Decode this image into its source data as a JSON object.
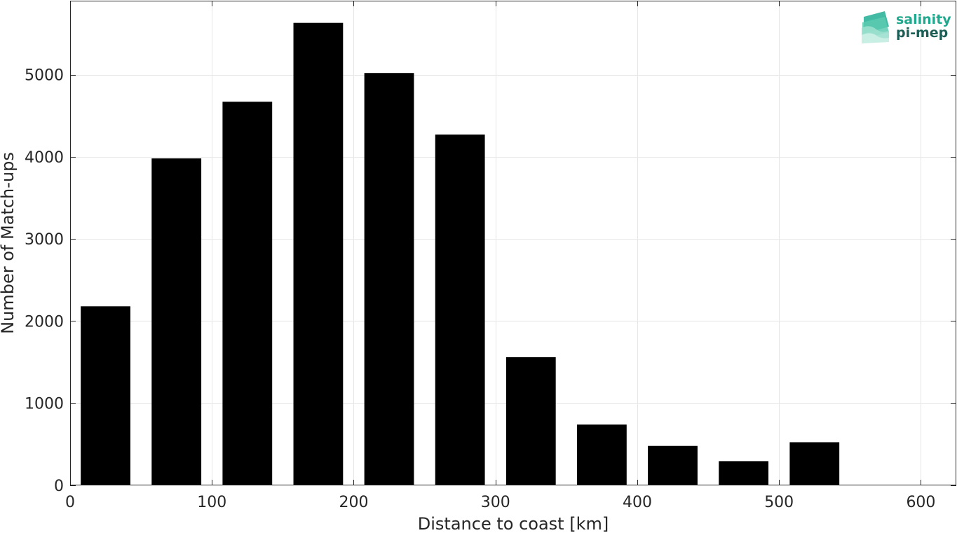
{
  "chart_data": {
    "type": "bar",
    "bin_width_km": 50,
    "x": [
      25,
      75,
      125,
      175,
      225,
      275,
      325,
      375,
      425,
      475,
      525
    ],
    "values": [
      2180,
      3980,
      4670,
      5630,
      5020,
      4270,
      1560,
      740,
      480,
      295,
      525
    ],
    "xlabel": "Distance to coast [km]",
    "ylabel": "Number of Match-ups",
    "xlim": [
      0,
      625
    ],
    "ylim": [
      0,
      5900
    ],
    "xticks": [
      0,
      100,
      200,
      300,
      400,
      500,
      600
    ],
    "yticks": [
      0,
      1000,
      2000,
      3000,
      4000,
      5000
    ],
    "grid": true,
    "bar_color": "#000000"
  },
  "logo": {
    "line1": "salinity",
    "line2": "pi-mep",
    "color1": "#1fa98f",
    "color2": "#1b5e55"
  }
}
